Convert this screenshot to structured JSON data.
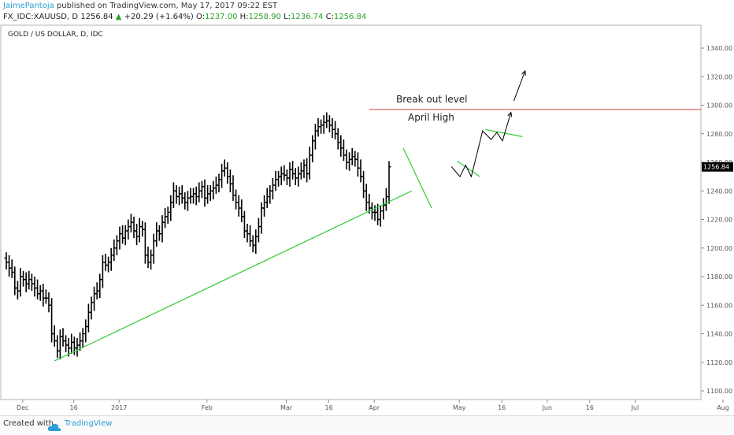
{
  "header": {
    "author": "JaimePantoja",
    "published": " published on TradingView.com, May 17, 2017 09:22 EST",
    "symbol": "FX_IDC:XAUUSD, D",
    "last": "1256.84",
    "change": "+20.29 (+1.64%)",
    "o_label": "O:",
    "o": "1237.00",
    "h_label": "H:",
    "h": "1258.90",
    "l_label": "L:",
    "l": "1236.74",
    "c_label": "C:",
    "c": "1256.84"
  },
  "footer": {
    "created": "Created with",
    "brand": "TradingView"
  },
  "colors": {
    "candle": "#000000",
    "trend": "#33cc33",
    "resistance": "#e05050",
    "axis": "#555555",
    "price_tag": "#000000"
  },
  "chart_data": {
    "type": "ohlc",
    "title": "GOLD / US DOLLAR, D, IDC",
    "y_ticks": [
      "1340.00",
      "1320.00",
      "1300.00",
      "1280.00",
      "1260.00",
      "1240.00",
      "1220.00",
      "1200.00",
      "1180.00",
      "1160.00",
      "1140.00",
      "1120.00",
      "1100.00"
    ],
    "ylim": [
      1093,
      1350
    ],
    "x_labels": [
      {
        "day": 3,
        "label": "Dec"
      },
      {
        "day": 21,
        "label": "16"
      },
      {
        "day": 37,
        "label": "2017"
      },
      {
        "day": 68,
        "label": "Feb"
      },
      {
        "day": 96,
        "label": "Mar"
      },
      {
        "day": 111,
        "label": "16"
      },
      {
        "day": 127,
        "label": "Apr"
      },
      {
        "day": 157,
        "label": "May"
      },
      {
        "day": 172,
        "label": "16"
      },
      {
        "day": 188,
        "label": "Jun"
      },
      {
        "day": 203,
        "label": "16"
      },
      {
        "day": 219,
        "label": "Jul"
      },
      {
        "day": 250,
        "label": "Aug"
      }
    ],
    "last_price": "1256.84",
    "last_price_value": 1256.84,
    "candles_close": [
      1190,
      1186,
      1183,
      1172,
      1170,
      1180,
      1178,
      1175,
      1178,
      1175,
      1172,
      1168,
      1170,
      1165,
      1165,
      1160,
      1140,
      1135,
      1128,
      1138,
      1135,
      1132,
      1130,
      1134,
      1130,
      1132,
      1135,
      1140,
      1145,
      1155,
      1162,
      1168,
      1170,
      1178,
      1190,
      1188,
      1190,
      1195,
      1200,
      1205,
      1210,
      1207,
      1212,
      1215,
      1218,
      1212,
      1208,
      1215,
      1213,
      1195,
      1190,
      1195,
      1205,
      1212,
      1210,
      1218,
      1222,
      1225,
      1232,
      1240,
      1236,
      1238,
      1235,
      1232,
      1235,
      1236,
      1238,
      1236,
      1240,
      1243,
      1235,
      1238,
      1240,
      1242,
      1244,
      1248,
      1254,
      1256,
      1250,
      1245,
      1237,
      1232,
      1228,
      1222,
      1212,
      1210,
      1205,
      1202,
      1208,
      1215,
      1228,
      1232,
      1236,
      1240,
      1244,
      1248,
      1250,
      1252,
      1251,
      1249,
      1255,
      1252,
      1249,
      1252,
      1254,
      1258,
      1252,
      1265,
      1275,
      1282,
      1285,
      1286,
      1288,
      1289,
      1286,
      1283,
      1280,
      1274,
      1270,
      1265,
      1260,
      1262,
      1264,
      1262,
      1256,
      1250,
      1240,
      1232,
      1228,
      1225,
      1225,
      1220,
      1226,
      1230,
      1236,
      1256.84
    ],
    "candles_day": [
      0,
      1,
      2,
      3,
      4,
      5,
      6,
      7,
      8,
      9,
      10,
      11,
      12,
      13,
      14,
      15,
      16,
      17,
      18,
      19,
      20,
      21,
      22,
      23,
      24,
      25,
      26,
      27,
      28,
      29,
      30,
      31,
      32,
      33,
      34,
      35,
      36,
      37,
      38,
      39,
      40,
      41,
      42,
      43,
      44,
      45,
      46,
      47,
      48,
      49,
      50,
      51,
      52,
      53,
      54,
      55,
      56,
      57,
      58,
      59,
      60,
      61,
      62,
      63,
      64,
      65,
      66,
      67,
      68,
      69,
      70,
      71,
      72,
      73,
      74,
      75,
      76,
      77,
      78,
      79,
      80,
      81,
      82,
      83,
      84,
      85,
      86,
      87,
      88,
      89,
      90,
      91,
      92,
      93,
      94,
      95,
      96,
      97,
      98,
      99,
      100,
      101,
      102,
      103,
      104,
      105,
      106,
      107,
      108,
      109,
      110,
      111,
      112,
      113,
      114,
      115,
      116,
      117,
      118,
      119,
      120,
      121,
      122,
      123,
      124,
      125,
      126,
      127,
      128,
      129,
      130,
      131,
      132,
      133,
      134,
      135
    ],
    "trendlines": [
      {
        "kind": "trend",
        "from": [
          17,
          1121
        ],
        "to": [
          143,
          1240
        ]
      },
      {
        "kind": "trend",
        "from": [
          140,
          1270
        ],
        "to": [
          150,
          1228
        ]
      },
      {
        "kind": "trend",
        "from": [
          159,
          1261
        ],
        "to": [
          167,
          1250
        ]
      },
      {
        "kind": "trend",
        "from": [
          169,
          1283
        ],
        "to": [
          182,
          1278
        ]
      },
      {
        "kind": "resistance",
        "from": [
          128,
          1297
        ],
        "to": [
          232,
          1297
        ]
      }
    ],
    "projection": [
      [
        157,
        1257
      ],
      [
        160,
        1250
      ],
      [
        162,
        1258
      ],
      [
        164,
        1250
      ],
      [
        168,
        1282
      ],
      [
        171,
        1276
      ],
      [
        173,
        1281
      ],
      [
        175,
        1275
      ],
      [
        178,
        1295
      ]
    ],
    "arrow2": [
      [
        179,
        1303
      ],
      [
        183,
        1324
      ]
    ],
    "annotations": [
      {
        "id": "breakout",
        "text": "Break out level"
      },
      {
        "id": "april",
        "text": "April High"
      }
    ]
  }
}
